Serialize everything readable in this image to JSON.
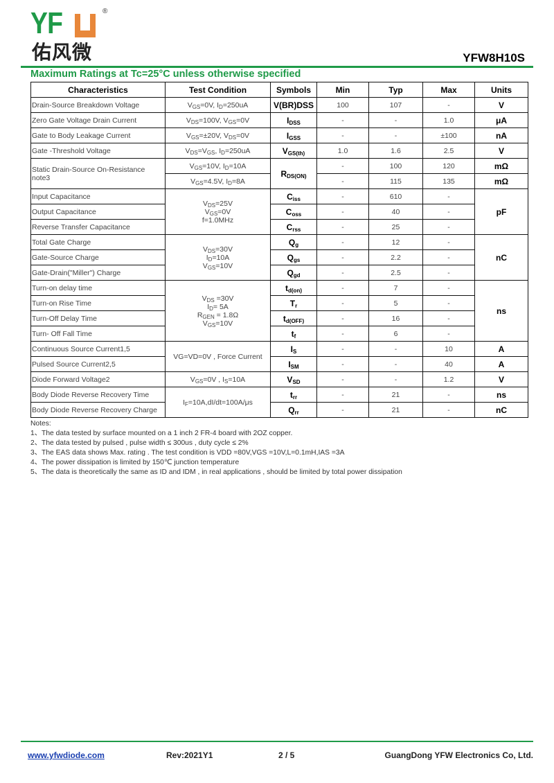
{
  "header": {
    "logo_latin": "YFW",
    "logo_cn": "佑风微",
    "registered": "®",
    "part_number": "YFW8H10S"
  },
  "heading": "Maximum Ratings at Tc=25°C unless otherwise specified",
  "columns": [
    "Characteristics",
    "Test Condition",
    "Symbols",
    "Min",
    "Typ",
    "Max",
    "Units"
  ],
  "rows": [
    {
      "ch": "Drain-Source Breakdown Voltage",
      "cond": "V_{GS}=0V, I_{D}=250uA",
      "sym": "V(BR)DSS",
      "min": "100",
      "typ": "107",
      "max": "-",
      "unit": "V"
    },
    {
      "ch": "Zero Gate Voltage Drain Current",
      "cond": "V_{DS}=100V, V_{GS}=0V",
      "sym": "I_{DSS}",
      "min": "-",
      "typ": "-",
      "max": "1.0",
      "unit": "μA"
    },
    {
      "ch": "Gate to Body Leakage Current",
      "cond": "V_{GS}=±20V, V_{DS}=0V",
      "sym": "I_{GSS}",
      "min": "-",
      "typ": "-",
      "max": "±100",
      "unit": "nA"
    },
    {
      "ch": "Gate -Threshold  Voltage",
      "cond": "V_{DS}=V_{GS}, I_{D}=250uA",
      "sym": "V_{GS(th)}",
      "min": "1.0",
      "typ": "1.6",
      "max": "2.5",
      "unit": "V"
    },
    {
      "ch": "Static Drain-Source On-Resistance note3",
      "cond": "V_{GS}=10V, I_{D}=10A",
      "sym": "R_{DS(ON)}",
      "min": "-",
      "typ": "100",
      "max": "120",
      "unit": "mΩ"
    },
    {
      "cond": "V_{GS}=4.5V, I_{D}=8A",
      "min": "-",
      "typ": "115",
      "max": "135",
      "unit": "mΩ"
    },
    {
      "ch": "Input Capacitance",
      "cond": "V_{DS}=25V|V_{GS}=0V|f=1.0MHz",
      "sym": "C_{iss}",
      "min": "-",
      "typ": "610",
      "max": "-",
      "unit": "pF"
    },
    {
      "ch": "Output Capacitance",
      "sym": "C_{oss}",
      "min": "-",
      "typ": "40",
      "max": "-"
    },
    {
      "ch": "Reverse Transfer Capacitance",
      "sym": "C_{rss}",
      "min": "-",
      "typ": "25",
      "max": "-"
    },
    {
      "ch": "Total Gate Charge",
      "cond": "V_{DS}=30V|I_{D}=10A|V_{GS}=10V",
      "sym": "Q_{g}",
      "min": "-",
      "typ": "12",
      "max": "-",
      "unit": "nC"
    },
    {
      "ch": "Gate-Source Charge",
      "sym": "Q_{gs}",
      "min": "-",
      "typ": "2.2",
      "max": "-"
    },
    {
      "ch": "Gate-Drain(\"Miller\") Charge",
      "sym": "Q_{gd}",
      "min": "-",
      "typ": "2.5",
      "max": "-"
    },
    {
      "ch": "Turn-on delay time",
      "cond": "V_{DS} =30V|I_{D}= 5A|R_{GEN} = 1.8Ω|V_{GS}=10V",
      "sym": "t_{d(on)}",
      "min": "-",
      "typ": "7",
      "max": "-",
      "unit": "ns"
    },
    {
      "ch": "Turn-on  Rise Time",
      "sym": "T_{r}",
      "min": "-",
      "typ": "5",
      "max": "-"
    },
    {
      "ch": "Turn-Off  Delay Time",
      "sym": "t_{d(OFF)}",
      "min": "-",
      "typ": "16",
      "max": "-"
    },
    {
      "ch": "Turn- Off  Fall Time",
      "sym": "t_{f}",
      "min": "-",
      "typ": "6",
      "max": "-"
    },
    {
      "ch": "Continuous Source Current1,5",
      "cond": "VG=VD=0V , Force Current",
      "sym": "I_{S}",
      "min": "-",
      "typ": "-",
      "max": "10",
      "unit": "A"
    },
    {
      "ch": "Pulsed Source Current2,5",
      "sym": "I_{SM}",
      "min": "-",
      "typ": "-",
      "max": "40",
      "unit": "A"
    },
    {
      "ch": "Diode Forward Voltage2",
      "cond": "V_{GS}=0V , I_{S}=10A",
      "sym": "V_{SD}",
      "min": "-",
      "typ": "-",
      "max": "1.2",
      "unit": "V"
    },
    {
      "ch": "Body Diode Reverse Recovery Time",
      "cond": "I_{F}=10A,dI/dt=100A/μs",
      "sym": "t_{rr}",
      "min": "-",
      "typ": "21",
      "max": "-",
      "unit": "ns"
    },
    {
      "ch": "Body Diode Reverse Recovery Charge",
      "sym": "Q_{rr}",
      "min": "-",
      "typ": "21",
      "max": "-",
      "unit": "nC"
    }
  ],
  "notes": {
    "title": "Notes:",
    "items": [
      "1、The data tested by surface mounted on a 1 inch 2 FR-4 board with 2OZ copper.",
      "2、The data tested by pulsed , pulse width ≤ 300us , duty cycle ≤ 2%",
      "3、The EAS data shows Max. rating . The test condition is VDD =80V,VGS =10V,L=0.1mH,IAS =3A",
      "4、The power dissipation is limited by 150℃ junction temperature",
      "5、The data is theoretically the same as ID and IDM , in real applications , should be limited by total power dissipation"
    ]
  },
  "footer": {
    "website": "www.yfwdiode.com",
    "revision": "Rev:2021Y1",
    "page": "2 / 5",
    "company": "GuangDong YFW Electronics Co, Ltd."
  },
  "colors": {
    "brand_green": "#1f9a48",
    "brand_orange": "#e8873a",
    "link_blue": "#1a3fb0"
  }
}
